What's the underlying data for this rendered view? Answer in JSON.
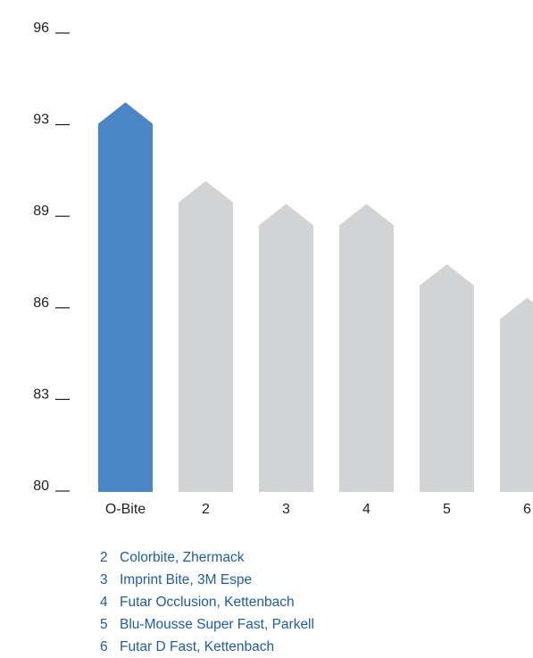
{
  "chart_data": {
    "type": "bar",
    "categories": [
      "O-Bite",
      "2",
      "3",
      "4",
      "5",
      "6"
    ],
    "values": [
      93.7,
      90.5,
      89.5,
      89.5,
      87.4,
      86.3
    ],
    "y_ticks": [
      "96",
      "93",
      "89",
      "86",
      "83",
      "80"
    ],
    "title": "",
    "xlabel": "",
    "ylabel": "",
    "grid": false,
    "colors": {
      "highlight": "#4a86c5",
      "bar": "#d2d3d5",
      "text": "#231f20",
      "legend": "#1e5da8"
    }
  },
  "legend": {
    "items": [
      {
        "num": "2",
        "label": "Colorbite, Zhermack"
      },
      {
        "num": "3",
        "label": "Imprint Bite, 3M Espe"
      },
      {
        "num": "4",
        "label": "Futar Occlusion, Kettenbach"
      },
      {
        "num": "5",
        "label": "Blu-Mousse Super Fast, Parkell"
      },
      {
        "num": "6",
        "label": "Futar D Fast, Kettenbach"
      }
    ]
  }
}
